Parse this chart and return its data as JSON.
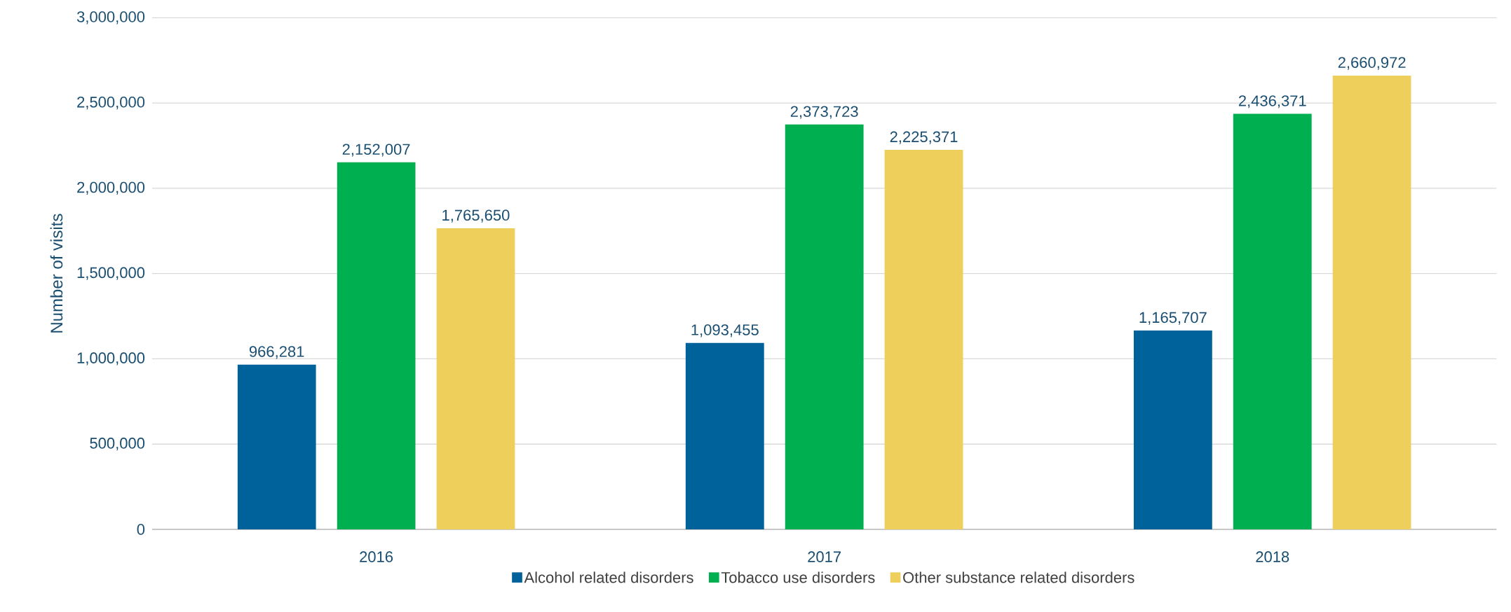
{
  "chart_data": {
    "type": "bar",
    "ylabel": "Number of visits",
    "categories": [
      "2016",
      "2017",
      "2018"
    ],
    "series": [
      {
        "name": "Alcohol related disorders",
        "color": "#00629b",
        "values": [
          966281,
          1093455,
          1165707
        ],
        "value_labels": [
          "966,281",
          "1,093,455",
          "1,165,707"
        ]
      },
      {
        "name": "Tobacco use disorders",
        "color": "#00b050",
        "values": [
          2152007,
          2373723,
          2436371
        ],
        "value_labels": [
          "2,152,007",
          "2,373,723",
          "2,436,371"
        ]
      },
      {
        "name": "Other substance related disorders",
        "color": "#eecf5b",
        "values": [
          1765650,
          2225371,
          2660972
        ],
        "value_labels": [
          "1,765,650",
          "2,225,371",
          "2,660,972"
        ]
      }
    ],
    "ylim": [
      0,
      3000000
    ],
    "yticks": [
      {
        "value": 0,
        "label": "0"
      },
      {
        "value": 500000,
        "label": "500,000"
      },
      {
        "value": 1000000,
        "label": "1,000,000"
      },
      {
        "value": 1500000,
        "label": "1,500,000"
      },
      {
        "value": 2000000,
        "label": "2,000,000"
      },
      {
        "value": 2500000,
        "label": "2,500,000"
      },
      {
        "value": 3000000,
        "label": "3,000,000"
      }
    ],
    "grid": "y",
    "legend": "bottom"
  }
}
